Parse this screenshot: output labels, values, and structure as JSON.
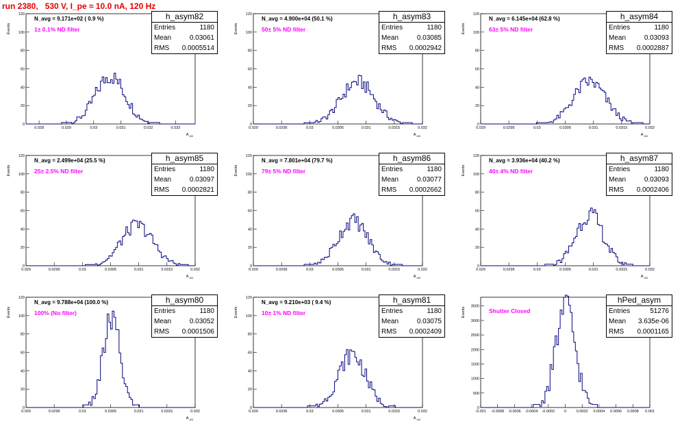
{
  "run_title": "run 2380,   530 V, I_pe ≈ 10.0 nA, 120 Hz",
  "colors": {
    "histogram": "#00007f",
    "title": "#e00000",
    "filter_label": "#ff00ff"
  },
  "chart_data": [
    {
      "type": "histogram",
      "name": "h_asym82",
      "ylabel": "Events",
      "xlabel": "A_UD",
      "n_avg": "N_avg = 9.171e+02 ( 0.9 %)",
      "filter": "1± 0.1% ND filter",
      "stats": {
        "entries": "1180",
        "mean": "0.03061",
        "rms": "0.0005514"
      },
      "xlim": [
        0.02752,
        0.03372
      ],
      "ylim": [
        0,
        120
      ],
      "x_ticks": [
        0.028,
        0.029,
        0.03,
        0.031,
        0.032,
        0.033
      ],
      "x_tick_labels": [
        "0.028",
        "0.029",
        "0.03",
        "0.031",
        "0.032",
        "0.033"
      ],
      "y_ticks": [
        0,
        20,
        40,
        60,
        80,
        100,
        120
      ],
      "mean": 0.03061,
      "rms": 0.0005514,
      "peak": 52
    },
    {
      "type": "histogram",
      "name": "h_asym83",
      "ylabel": "Events",
      "xlabel": "A_UD",
      "n_avg": "N_avg = 4.900e+04 (50.1 %)",
      "filter": "50± 5% ND filter",
      "stats": {
        "entries": "1180",
        "mean": "0.03085",
        "rms": "0.0002942"
      },
      "xlim": [
        0.029,
        0.032
      ],
      "ylim": [
        0,
        120
      ],
      "x_ticks": [
        0.029,
        0.0295,
        0.03,
        0.0305,
        0.031,
        0.0315,
        0.032
      ],
      "x_tick_labels": [
        "0.029",
        "0.0295",
        "0.03",
        "0.0305",
        "0.031",
        "0.0315",
        "0.032"
      ],
      "y_ticks": [
        0,
        20,
        40,
        60,
        80,
        100,
        120
      ],
      "mean": 0.03085,
      "rms": 0.0002942,
      "peak": 46
    },
    {
      "type": "histogram",
      "name": "h_asym84",
      "ylabel": "Events",
      "xlabel": "A_UD",
      "n_avg": "N_avg = 6.145e+04 (62.8 %)",
      "filter": "63± 5% ND filter",
      "stats": {
        "entries": "1180",
        "mean": "0.03093",
        "rms": "0.0002887"
      },
      "xlim": [
        0.029,
        0.032
      ],
      "ylim": [
        0,
        120
      ],
      "x_ticks": [
        0.029,
        0.0295,
        0.03,
        0.0305,
        0.031,
        0.0315,
        0.032
      ],
      "x_tick_labels": [
        "0.029",
        "0.0295",
        "0.03",
        "0.0305",
        "0.031",
        "0.0315",
        "0.032"
      ],
      "y_ticks": [
        0,
        20,
        40,
        60,
        80,
        100,
        120
      ],
      "mean": 0.03093,
      "rms": 0.0002887,
      "peak": 46
    },
    {
      "type": "histogram",
      "name": "h_asym85",
      "ylabel": "Events",
      "xlabel": "A_UD",
      "n_avg": "N_avg = 2.499e+04 (25.5 %)",
      "filter": "25± 2.5% ND filter",
      "stats": {
        "entries": "1180",
        "mean": "0.03097",
        "rms": "0.0002821"
      },
      "xlim": [
        0.029,
        0.032
      ],
      "ylim": [
        0,
        120
      ],
      "x_ticks": [
        0.029,
        0.0295,
        0.03,
        0.0305,
        0.031,
        0.0315,
        0.032
      ],
      "x_tick_labels": [
        "0.029",
        "0.0295",
        "0.03",
        "0.0305",
        "0.031",
        "0.0315",
        "0.032"
      ],
      "y_ticks": [
        0,
        20,
        40,
        60,
        80,
        100,
        120
      ],
      "mean": 0.03097,
      "rms": 0.0002821,
      "peak": 44
    },
    {
      "type": "histogram",
      "name": "h_asym86",
      "ylabel": "Events",
      "xlabel": "A_UD",
      "n_avg": "N_avg = 7.801e+04 (79.7 %)",
      "filter": "79± 5% ND filter",
      "stats": {
        "entries": "1180",
        "mean": "0.03077",
        "rms": "0.0002662"
      },
      "xlim": [
        0.029,
        0.032
      ],
      "ylim": [
        0,
        120
      ],
      "x_ticks": [
        0.029,
        0.0295,
        0.03,
        0.0305,
        0.031,
        0.0315,
        0.032
      ],
      "x_tick_labels": [
        "0.029",
        "0.0295",
        "0.03",
        "0.0305",
        "0.031",
        "0.0315",
        "0.032"
      ],
      "y_ticks": [
        0,
        20,
        40,
        60,
        80,
        100,
        120
      ],
      "mean": 0.03077,
      "rms": 0.0002662,
      "peak": 49
    },
    {
      "type": "histogram",
      "name": "h_asym87",
      "ylabel": "Events",
      "xlabel": "A_UD",
      "n_avg": "N_avg = 3.936e+04 (40.2 %)",
      "filter": "40± 4% ND filter",
      "stats": {
        "entries": "1180",
        "mean": "0.03093",
        "rms": "0.0002406"
      },
      "xlim": [
        0.029,
        0.032
      ],
      "ylim": [
        0,
        120
      ],
      "x_ticks": [
        0.029,
        0.0295,
        0.03,
        0.0305,
        0.031,
        0.0315,
        0.032
      ],
      "x_tick_labels": [
        "0.029",
        "0.0295",
        "0.03",
        "0.0305",
        "0.031",
        "0.0315",
        "0.032"
      ],
      "y_ticks": [
        0,
        20,
        40,
        60,
        80,
        100,
        120
      ],
      "mean": 0.03093,
      "rms": 0.0002406,
      "peak": 56
    },
    {
      "type": "histogram",
      "name": "h_asym80",
      "ylabel": "Events",
      "xlabel": "A_UD",
      "n_avg": "N_avg = 9.788e+04 (100.0 %)",
      "filter": "100% (No filter)",
      "stats": {
        "entries": "1180",
        "mean": "0.03052",
        "rms": "0.0001506"
      },
      "xlim": [
        0.029,
        0.032
      ],
      "ylim": [
        0,
        120
      ],
      "x_ticks": [
        0.029,
        0.0295,
        0.03,
        0.0305,
        0.031,
        0.0315,
        0.032
      ],
      "x_tick_labels": [
        "0.029",
        "0.0295",
        "0.03",
        "0.0305",
        "0.031",
        "0.0315",
        "0.032"
      ],
      "y_ticks": [
        0,
        20,
        40,
        60,
        80,
        100,
        120
      ],
      "mean": 0.03052,
      "rms": 0.0001506,
      "peak": 96
    },
    {
      "type": "histogram",
      "name": "h_asym81",
      "ylabel": "Events",
      "xlabel": "A_UD",
      "n_avg": "N_avg = 9.210e+03 ( 9.4 %)",
      "filter": "10± 1% ND filter",
      "stats": {
        "entries": "1180",
        "mean": "0.03075",
        "rms": "0.0002409"
      },
      "xlim": [
        0.029,
        0.032
      ],
      "ylim": [
        0,
        120
      ],
      "x_ticks": [
        0.029,
        0.0295,
        0.03,
        0.0305,
        0.031,
        0.0315,
        0.032
      ],
      "x_tick_labels": [
        "0.029",
        "0.0295",
        "0.03",
        "0.0305",
        "0.031",
        "0.0315",
        "0.032"
      ],
      "y_ticks": [
        0,
        20,
        40,
        60,
        80,
        100,
        120
      ],
      "mean": 0.03075,
      "rms": 0.0002409,
      "peak": 58
    },
    {
      "type": "histogram",
      "name": "hPed_asym",
      "ylabel": "Events",
      "xlabel": "",
      "n_avg": "",
      "filter": "Shutter Closed",
      "stats": {
        "entries": "51276",
        "mean": "3.635e-06",
        "rms": "0.0001165"
      },
      "xlim": [
        -0.001,
        0.001
      ],
      "ylim": [
        0,
        3800
      ],
      "x_ticks": [
        -0.001,
        -0.0008,
        -0.0006,
        -0.0004,
        -0.0002,
        0,
        0.0002,
        0.0004,
        0.0006,
        0.0008,
        0.001
      ],
      "x_tick_labels": [
        "-0.001",
        "-0.0008",
        "-0.0006",
        "-0.0004",
        "-0.0002",
        "0",
        "0.0002",
        "0.0004",
        "0.0006",
        "0.0008",
        "0.001"
      ],
      "y_ticks": [
        0,
        500,
        1000,
        1500,
        2000,
        2500,
        3000,
        3500
      ],
      "mean": 3.635e-06,
      "rms": 0.0001165,
      "peak": 3450
    }
  ]
}
